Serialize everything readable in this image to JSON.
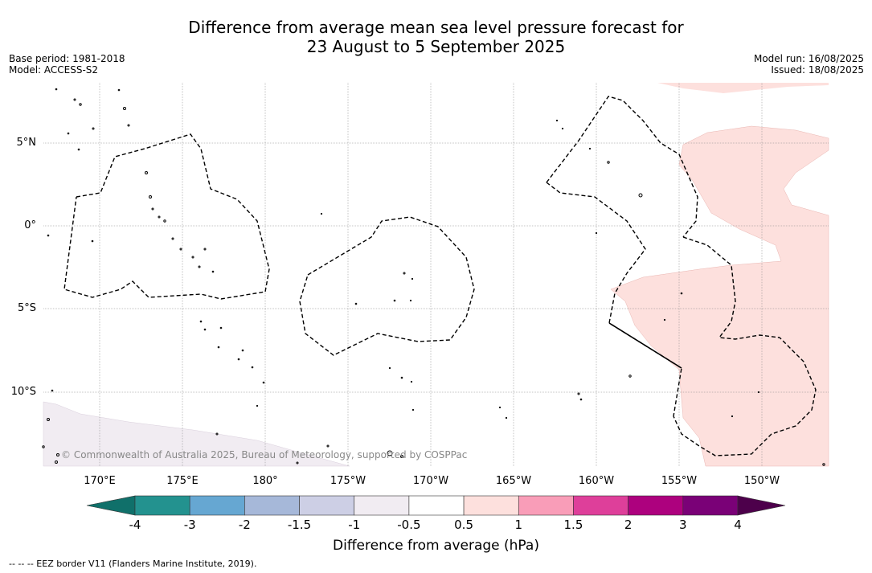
{
  "title_line1": "Difference from average mean sea level pressure forecast for",
  "title_line2": "23 August to 5 September 2025",
  "meta_left": {
    "base_period": "Base period: 1981-2018",
    "model": "Model: ACCESS-S2"
  },
  "meta_right": {
    "model_run": "Model run: 16/08/2025",
    "issued": "Issued: 18/08/2025"
  },
  "copyright": "© Commonwealth of Australia 2025, Bureau of Meteorology, supported by COSPPac",
  "lat_labels": [
    "5°N",
    "0°",
    "5°S",
    "10°S"
  ],
  "lon_labels": [
    "170°E",
    "175°E",
    "180°",
    "175°W",
    "170°W",
    "165°W",
    "160°W",
    "155°W",
    "150°W"
  ],
  "colorbar": {
    "title": "Difference from average (hPa)",
    "tick_labels": [
      "-4",
      "-3",
      "-2",
      "-1.5",
      "-1",
      "-0.5",
      "0.5",
      "1",
      "1.5",
      "2",
      "3",
      "4"
    ],
    "colors": [
      "#10706a",
      "#23928f",
      "#66a7d2",
      "#a6b8d9",
      "#cdcfe5",
      "#f1ecf2",
      "#ffffff",
      "#fde0dd",
      "#f99db8",
      "#de3f9a",
      "#ad017e",
      "#7a0177",
      "#4d004b"
    ]
  },
  "footnote": "-- -- -- EEZ border V11 (Flanders Marine Institute, 2019)."
}
